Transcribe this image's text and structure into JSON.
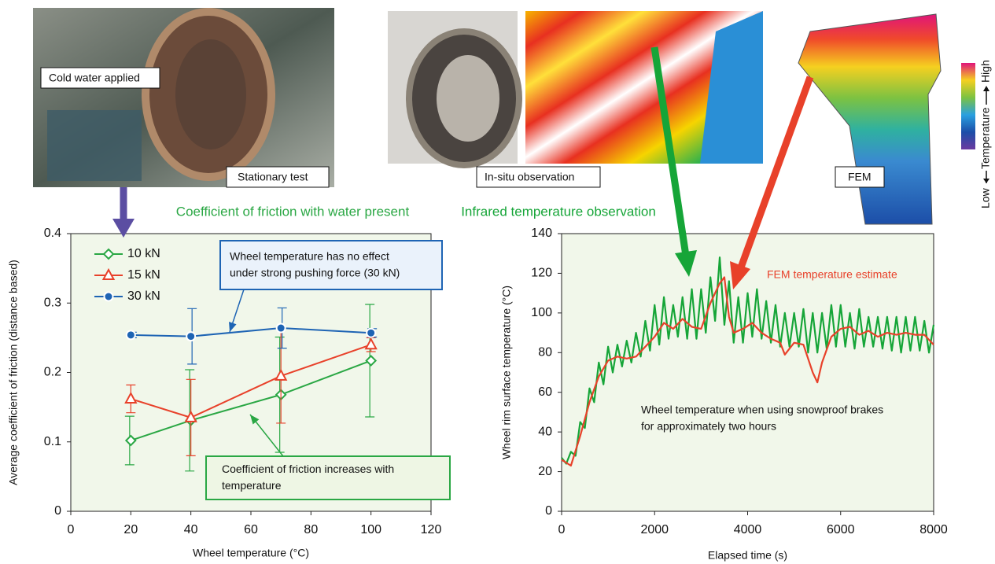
{
  "photo_labels": [
    "Cold water applied",
    "Stationary test",
    "In-situ observation",
    "FEM"
  ],
  "color_scale": {
    "low": "Low",
    "label": "Temperature",
    "high": "High"
  },
  "chart_data": [
    {
      "type": "line",
      "title": "Coefficient of friction with water present",
      "x_label": "Wheel temperature (°C)",
      "y_label": "Average coefficient of friction (distance based)",
      "xlim": [
        0,
        120
      ],
      "xticks": [
        0,
        20,
        40,
        60,
        80,
        100,
        120
      ],
      "ylim": [
        0,
        0.4
      ],
      "yticks": [
        0,
        0.1,
        0.2,
        0.3,
        0.4
      ],
      "legend": "upper left",
      "x": [
        20,
        40,
        70,
        100
      ],
      "series": [
        {
          "name": "10 kN",
          "color": "#2aa744",
          "marker": "diamond",
          "values": [
            0.102,
            0.131,
            0.168,
            0.217
          ],
          "errors": [
            0.035,
            0.073,
            0.083,
            0.081
          ]
        },
        {
          "name": "15 kN",
          "color": "#e8412a",
          "marker": "triangle",
          "values": [
            0.162,
            0.135,
            0.195,
            0.24
          ],
          "errors": [
            0.02,
            0.055,
            0.068,
            0.01
          ]
        },
        {
          "name": "30 kN",
          "color": "#1e64b4",
          "marker": "circle",
          "values": [
            0.254,
            0.252,
            0.264,
            0.257
          ],
          "errors": [
            0.004,
            0.04,
            0.029,
            0.006
          ]
        }
      ],
      "annotations": [
        {
          "lines": [
            "Wheel temperature has no effect",
            "under strong pushing force (30 kN)"
          ],
          "color": "#1e64b4"
        },
        {
          "lines": [
            "Coefficient of friction increases with",
            "temperature"
          ],
          "color": "#2aa744"
        }
      ]
    },
    {
      "type": "line",
      "title": "Infrared temperature observation",
      "x_label": "Elapsed time (s)",
      "y_label": "Wheel rim surface temperature (°C)",
      "xlim": [
        0,
        8000
      ],
      "xticks": [
        0,
        2000,
        4000,
        6000,
        8000
      ],
      "ylim": [
        0,
        140
      ],
      "yticks": [
        0,
        20,
        40,
        60,
        80,
        100,
        120,
        140
      ],
      "series": [
        {
          "color": "#16a538",
          "x": [
            0,
            100,
            200,
            300,
            400,
            500,
            600,
            700,
            800,
            900,
            1000,
            1100,
            1200,
            1300,
            1400,
            1500,
            1600,
            1700,
            1800,
            1900,
            2000,
            2100,
            2200,
            2300,
            2400,
            2500,
            2600,
            2700,
            2800,
            2900,
            3000,
            3100,
            3200,
            3300,
            3400,
            3500,
            3600,
            3700,
            3800,
            3900,
            4000,
            4100,
            4200,
            4300,
            4400,
            4500,
            4600,
            4700,
            4800,
            4900,
            5000,
            5100,
            5200,
            5300,
            5400,
            5500,
            5600,
            5700,
            5800,
            5900,
            6000,
            6100,
            6200,
            6300,
            6400,
            6500,
            6600,
            6700,
            6800,
            6900,
            7000,
            7100,
            7200,
            7300,
            7400,
            7500,
            7600,
            7700,
            7800,
            7900,
            8000
          ],
          "values": [
            27,
            24,
            30,
            28,
            45,
            42,
            62,
            55,
            75,
            64,
            83,
            70,
            84,
            73,
            86,
            75,
            90,
            78,
            96,
            81,
            104,
            84,
            108,
            87,
            104,
            88,
            108,
            87,
            112,
            87,
            112,
            90,
            118,
            96,
            128,
            94,
            116,
            85,
            108,
            85,
            110,
            88,
            112,
            87,
            106,
            85,
            104,
            83,
            100,
            83,
            100,
            83,
            102,
            80,
            100,
            80,
            100,
            82,
            104,
            83,
            104,
            83,
            100,
            82,
            102,
            83,
            98,
            83,
            98,
            82,
            98,
            81,
            98,
            80,
            98,
            81,
            98,
            81,
            96,
            80,
            94
          ]
        },
        {
          "name": "FEM temperature estimate",
          "color": "#e8412a",
          "x": [
            0,
            200,
            400,
            600,
            800,
            1000,
            1200,
            1400,
            1600,
            1800,
            2000,
            2200,
            2400,
            2600,
            2800,
            3000,
            3200,
            3400,
            3500,
            3600,
            3700,
            3900,
            4100,
            4300,
            4500,
            4700,
            4800,
            5000,
            5200,
            5400,
            5500,
            5600,
            5800,
            6000,
            6200,
            6400,
            6600,
            6800,
            7000,
            7200,
            7400,
            7600,
            7800,
            8000
          ],
          "values": [
            26,
            23,
            38,
            55,
            68,
            76,
            78,
            77,
            78,
            83,
            88,
            95,
            92,
            97,
            93,
            92,
            105,
            115,
            118,
            98,
            90,
            92,
            95,
            90,
            87,
            85,
            79,
            85,
            84,
            70,
            65,
            75,
            88,
            92,
            93,
            89,
            91,
            88,
            90,
            89,
            90,
            89,
            89,
            84
          ]
        }
      ],
      "annotations": [
        {
          "lines": [
            "Wheel temperature when using snowproof brakes",
            "for approximately two hours"
          ],
          "color": "#111"
        }
      ]
    }
  ]
}
